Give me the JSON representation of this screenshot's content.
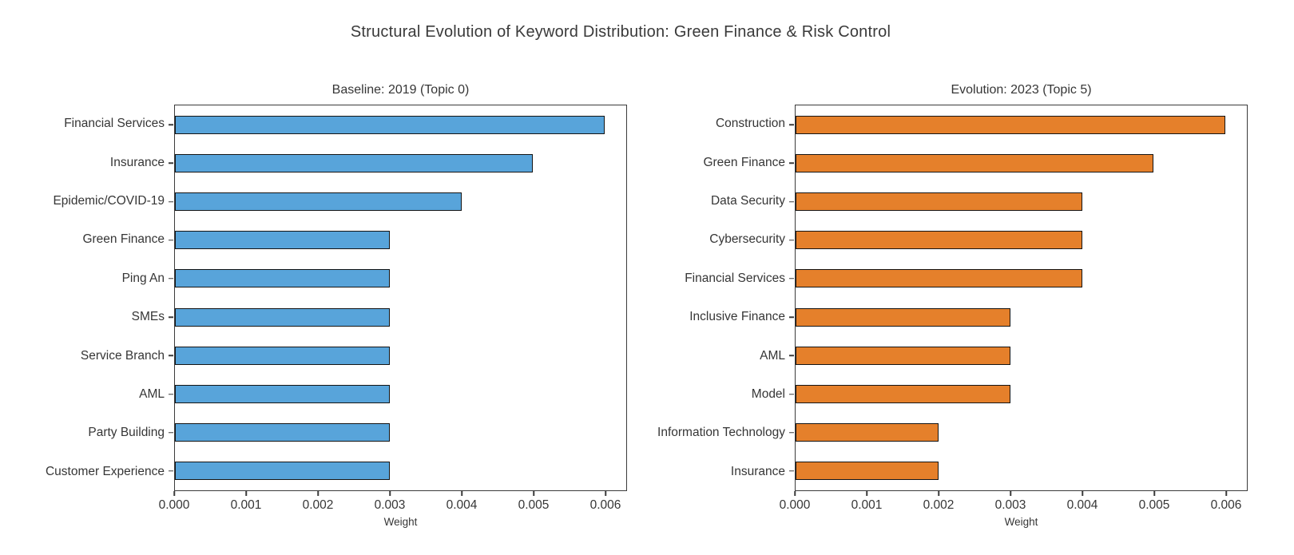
{
  "figure": {
    "title": "Structural Evolution of Keyword Distribution: Green Finance & Risk Control"
  },
  "chart_data": [
    {
      "type": "bar",
      "orientation": "horizontal",
      "title": "Baseline: 2019 (Topic 0)",
      "categories": [
        "Financial Services",
        "Insurance",
        "Epidemic/COVID-19",
        "Green Finance",
        "Ping An",
        "SMEs",
        "Service Branch",
        "AML",
        "Party Building",
        "Customer Experience"
      ],
      "values": [
        0.006,
        0.005,
        0.004,
        0.003,
        0.003,
        0.003,
        0.003,
        0.003,
        0.003,
        0.003
      ],
      "xlabel": "Weight",
      "xticks": [
        0.0,
        0.001,
        0.002,
        0.003,
        0.004,
        0.005,
        0.006
      ],
      "xtick_labels": [
        "0.000",
        "0.001",
        "0.002",
        "0.003",
        "0.004",
        "0.005",
        "0.006"
      ],
      "xlim": [
        0,
        0.0063
      ],
      "grid": false,
      "legend": false,
      "bar_color": "#58A4DA",
      "bar_edge_color": "#141414"
    },
    {
      "type": "bar",
      "orientation": "horizontal",
      "title": "Evolution: 2023 (Topic 5)",
      "categories": [
        "Construction",
        "Green Finance",
        "Data Security",
        "Cybersecurity",
        "Financial Services",
        "Inclusive Finance",
        "AML",
        "Model",
        "Information Technology",
        "Insurance"
      ],
      "values": [
        0.006,
        0.005,
        0.004,
        0.004,
        0.004,
        0.003,
        0.003,
        0.003,
        0.002,
        0.002
      ],
      "xlabel": "Weight",
      "xticks": [
        0.0,
        0.001,
        0.002,
        0.003,
        0.004,
        0.005,
        0.006
      ],
      "xtick_labels": [
        "0.000",
        "0.001",
        "0.002",
        "0.003",
        "0.004",
        "0.005",
        "0.006"
      ],
      "xlim": [
        0,
        0.0063
      ],
      "grid": false,
      "legend": false,
      "bar_color": "#E5802B",
      "bar_edge_color": "#141414"
    }
  ]
}
